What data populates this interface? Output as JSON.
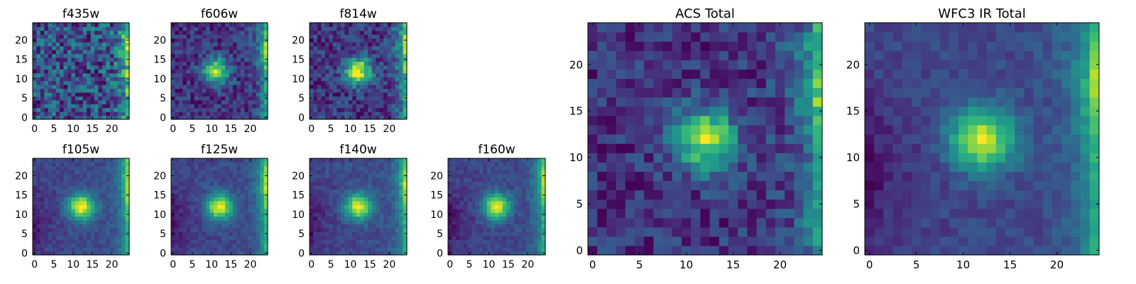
{
  "figure": {
    "panels": [
      {
        "id": "f435w",
        "title": "f435w"
      },
      {
        "id": "f606w",
        "title": "f606w"
      },
      {
        "id": "f814w",
        "title": "f814w"
      },
      {
        "id": "f105w",
        "title": "f105w"
      },
      {
        "id": "f125w",
        "title": "f125w"
      },
      {
        "id": "f140w",
        "title": "f140w"
      },
      {
        "id": "f160w",
        "title": "f160w"
      },
      {
        "id": "acs_total",
        "title": "ACS Total"
      },
      {
        "id": "wfc3_total",
        "title": "WFC3 IR Total"
      }
    ]
  },
  "chart_data": [
    {
      "type": "heatmap",
      "title": "f435w",
      "grid_size": [
        25,
        25
      ],
      "xlim": [
        -0.5,
        24.5
      ],
      "ylim": [
        -0.5,
        24.5
      ],
      "xticks": [
        0,
        5,
        10,
        15,
        20
      ],
      "yticks": [
        0,
        5,
        10,
        15,
        20
      ],
      "colormap": "viridis",
      "source_center": null,
      "right_edge_bright": true,
      "noise_level": "high",
      "grid": false
    },
    {
      "type": "heatmap",
      "title": "f606w",
      "grid_size": [
        25,
        25
      ],
      "xlim": [
        -0.5,
        24.5
      ],
      "ylim": [
        -0.5,
        24.5
      ],
      "xticks": [
        0,
        5,
        10,
        15,
        20
      ],
      "yticks": [
        0,
        5,
        10,
        15,
        20
      ],
      "colormap": "viridis",
      "source_center": [
        11,
        12
      ],
      "right_edge_bright": true,
      "noise_level": "medium",
      "grid": false
    },
    {
      "type": "heatmap",
      "title": "f814w",
      "grid_size": [
        25,
        25
      ],
      "xlim": [
        -0.5,
        24.5
      ],
      "ylim": [
        -0.5,
        24.5
      ],
      "xticks": [
        0,
        5,
        10,
        15,
        20
      ],
      "yticks": [
        0,
        5,
        10,
        15,
        20
      ],
      "colormap": "viridis",
      "source_center": [
        12,
        12
      ],
      "right_edge_bright": true,
      "noise_level": "medium",
      "grid": false
    },
    {
      "type": "heatmap",
      "title": "f105w",
      "grid_size": [
        25,
        25
      ],
      "xlim": [
        -0.5,
        24.5
      ],
      "ylim": [
        -0.5,
        24.5
      ],
      "xticks": [
        0,
        5,
        10,
        15,
        20
      ],
      "yticks": [
        0,
        5,
        10,
        15,
        20
      ],
      "colormap": "viridis",
      "source_center": [
        12,
        12
      ],
      "right_edge_bright": true,
      "noise_level": "low",
      "grid": false
    },
    {
      "type": "heatmap",
      "title": "f125w",
      "grid_size": [
        25,
        25
      ],
      "xlim": [
        -0.5,
        24.5
      ],
      "ylim": [
        -0.5,
        24.5
      ],
      "xticks": [
        0,
        5,
        10,
        15,
        20
      ],
      "yticks": [
        0,
        5,
        10,
        15,
        20
      ],
      "colormap": "viridis",
      "source_center": [
        12,
        12
      ],
      "right_edge_bright": true,
      "noise_level": "low",
      "grid": false
    },
    {
      "type": "heatmap",
      "title": "f140w",
      "grid_size": [
        25,
        25
      ],
      "xlim": [
        -0.5,
        24.5
      ],
      "ylim": [
        -0.5,
        24.5
      ],
      "xticks": [
        0,
        5,
        10,
        15,
        20
      ],
      "yticks": [
        0,
        5,
        10,
        15,
        20
      ],
      "colormap": "viridis",
      "source_center": [
        12,
        12
      ],
      "right_edge_bright": true,
      "noise_level": "low",
      "grid": false
    },
    {
      "type": "heatmap",
      "title": "f160w",
      "grid_size": [
        25,
        25
      ],
      "xlim": [
        -0.5,
        24.5
      ],
      "ylim": [
        -0.5,
        24.5
      ],
      "xticks": [
        0,
        5,
        10,
        15,
        20
      ],
      "yticks": [
        0,
        5,
        10,
        15,
        20
      ],
      "colormap": "viridis",
      "source_center": [
        12,
        12
      ],
      "right_edge_bright": true,
      "noise_level": "low",
      "grid": false
    },
    {
      "type": "heatmap",
      "title": "ACS Total",
      "grid_size": [
        25,
        25
      ],
      "xlim": [
        -0.5,
        24.5
      ],
      "ylim": [
        -0.5,
        24.5
      ],
      "xticks": [
        0,
        5,
        10,
        15,
        20
      ],
      "yticks": [
        0,
        5,
        10,
        15,
        20
      ],
      "colormap": "viridis",
      "source_center": [
        12,
        12
      ],
      "right_edge_bright": true,
      "noise_level": "medium",
      "grid": false
    },
    {
      "type": "heatmap",
      "title": "WFC3 IR Total",
      "grid_size": [
        25,
        25
      ],
      "xlim": [
        -0.5,
        24.5
      ],
      "ylim": [
        -0.5,
        24.5
      ],
      "xticks": [
        0,
        5,
        10,
        15,
        20
      ],
      "yticks": [
        0,
        5,
        10,
        15,
        20
      ],
      "colormap": "viridis",
      "source_center": [
        12,
        12
      ],
      "right_edge_bright": true,
      "noise_level": "low",
      "grid": false
    }
  ]
}
